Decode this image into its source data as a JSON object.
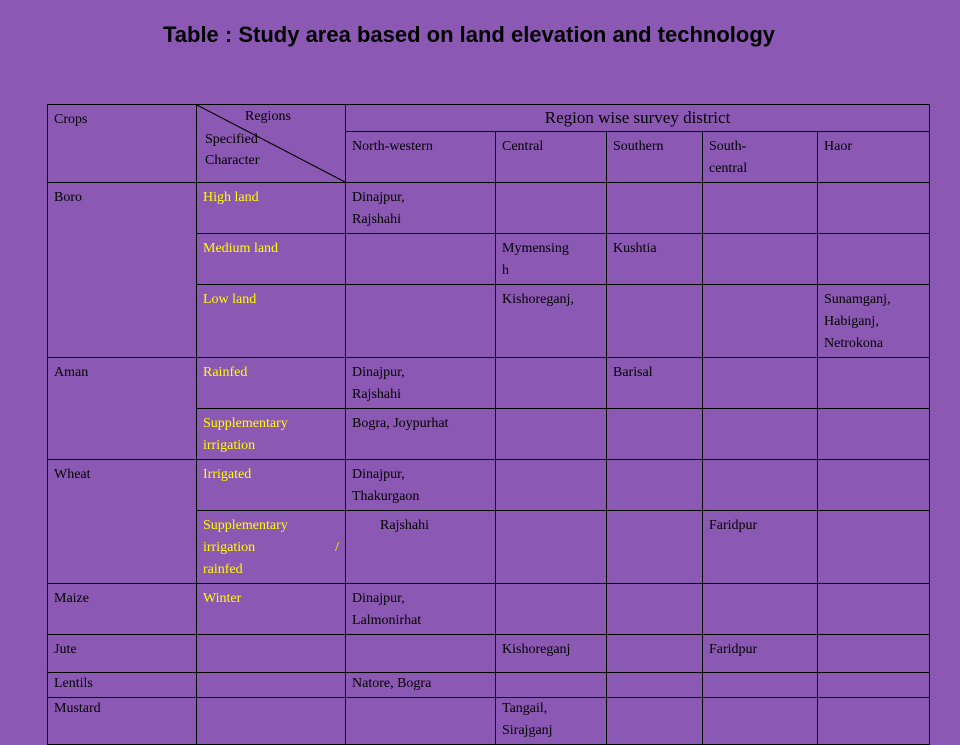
{
  "title": "Table :  Study area based on land elevation and technology",
  "header": {
    "crops": "Crops",
    "regions": "Regions",
    "specified": "Specified",
    "character": "Character",
    "region_wise": "Region wise survey district",
    "cols": [
      "North-western",
      "Central",
      "Southern",
      "South-",
      "central",
      "Haor"
    ]
  },
  "rows": {
    "boro": {
      "crop": "Boro",
      "r1": {
        "char": "High land",
        "nw": "Dinajpur,",
        "nw2": "Rajshahi"
      },
      "r2": {
        "char": "Medium land",
        "central": "Mymensing",
        "central2": "h",
        "southern": "Kushtia"
      },
      "r3": {
        "char": "Low land",
        "central": "Kishoreganj,",
        "haor": "Sunamganj,",
        "haor2": "Habiganj,",
        "haor3": "Netrokona"
      }
    },
    "aman": {
      "crop": "Aman",
      "r1": {
        "char": "Rainfed",
        "nw": "Dinajpur,",
        "nw2": "Rajshahi",
        "southern": "Barisal"
      },
      "r2": {
        "char": "Supplementary",
        "char2": "irrigation",
        "nw": "Bogra, Joypurhat"
      }
    },
    "wheat": {
      "crop": "Wheat",
      "r1": {
        "char": "Irrigated",
        "nw": "Dinajpur,",
        "nw2": "Thakurgaon"
      },
      "r2": {
        "char": "Supplementary",
        "char2a": "irrigation",
        "char2b": "/",
        "char3": "rainfed",
        "nw": "Rajshahi",
        "sc": "Faridpur"
      }
    },
    "maize": {
      "crop": "Maize",
      "char": "Winter",
      "nw": "Dinajpur,",
      "nw2": "Lalmonirhat"
    },
    "jute": {
      "crop": "Jute",
      "central": "Kishoreganj",
      "sc": "Faridpur"
    },
    "lentils": {
      "crop": "Lentils",
      "nw": "Natore, Bogra"
    },
    "mustard": {
      "crop": "Mustard",
      "central": "Tangail,",
      "central2": "Sirajganj"
    }
  }
}
